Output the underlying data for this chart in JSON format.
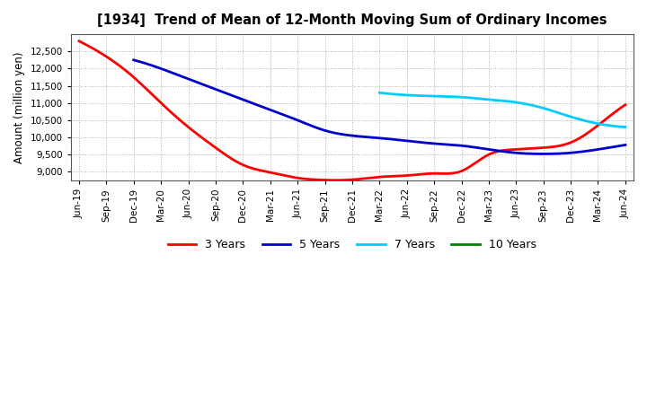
{
  "title": "[1934]  Trend of Mean of 12-Month Moving Sum of Ordinary Incomes",
  "ylabel": "Amount (million yen)",
  "ylim": [
    8750,
    13000
  ],
  "yticks": [
    9000,
    9500,
    10000,
    10500,
    11000,
    11500,
    12000,
    12500
  ],
  "background_color": "#ffffff",
  "grid_color": "#b0b0b0",
  "x_labels": [
    "Jun-19",
    "Sep-19",
    "Dec-19",
    "Mar-20",
    "Jun-20",
    "Sep-20",
    "Dec-20",
    "Mar-21",
    "Jun-21",
    "Sep-21",
    "Dec-21",
    "Mar-22",
    "Jun-22",
    "Sep-22",
    "Dec-22",
    "Mar-23",
    "Jun-23",
    "Sep-23",
    "Dec-23",
    "Mar-24",
    "Jun-24"
  ],
  "series": {
    "3 Years": {
      "color": "#ff0000",
      "data_x": [
        0,
        1,
        2,
        3,
        4,
        5,
        6,
        7,
        8,
        9,
        10,
        11,
        12,
        13,
        14,
        15,
        16,
        17,
        18,
        19,
        20
      ],
      "data_y": [
        12800,
        12350,
        11750,
        11000,
        10300,
        9700,
        9200,
        8980,
        8820,
        8760,
        8770,
        8850,
        8890,
        8950,
        9020,
        9500,
        9650,
        9700,
        9850,
        10350,
        10950
      ]
    },
    "5 Years": {
      "color": "#0000cc",
      "data_x": [
        2,
        3,
        4,
        5,
        6,
        7,
        8,
        9,
        10,
        11,
        12,
        13,
        14,
        15,
        16,
        17,
        18,
        19,
        20
      ],
      "data_y": [
        12250,
        12000,
        11700,
        11400,
        11100,
        10800,
        10500,
        10200,
        10050,
        9980,
        9900,
        9820,
        9760,
        9650,
        9550,
        9520,
        9550,
        9650,
        9780
      ]
    },
    "7 Years": {
      "color": "#00ccff",
      "data_x": [
        11,
        12,
        13,
        14,
        15,
        16,
        17,
        18,
        19,
        20
      ],
      "data_y": [
        11300,
        11230,
        11200,
        11170,
        11100,
        11020,
        10850,
        10600,
        10400,
        10300
      ]
    },
    "10 Years": {
      "color": "#008000",
      "data_x": [],
      "data_y": []
    }
  },
  "legend_entries": [
    "3 Years",
    "5 Years",
    "7 Years",
    "10 Years"
  ],
  "legend_colors": [
    "#ff0000",
    "#0000cc",
    "#00ccff",
    "#008000"
  ]
}
